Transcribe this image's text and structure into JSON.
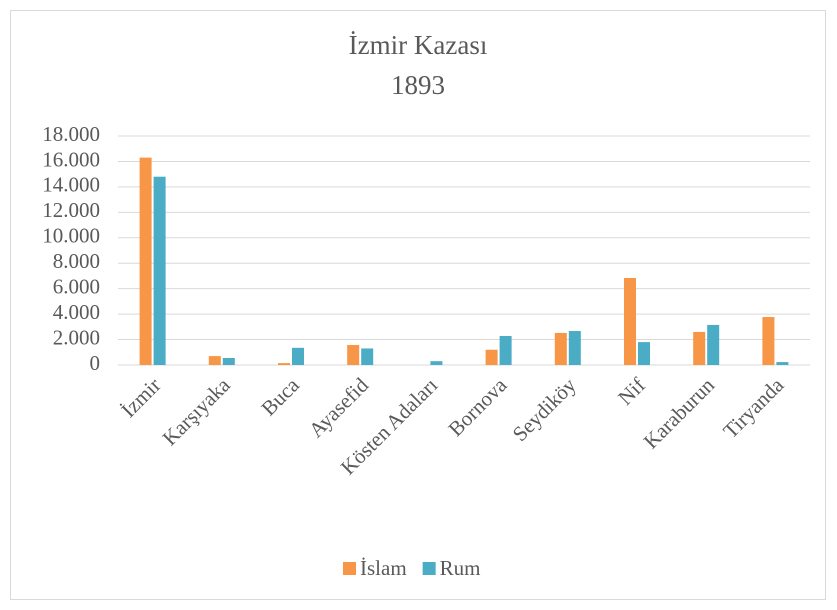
{
  "chart_data": {
    "type": "bar",
    "title": "İzmir Kazası",
    "subtitle": "1893",
    "categories": [
      "İzmir",
      "Karşıyaka",
      "Buca",
      "Ayasefid",
      "Kösten Adaları",
      "Bornova",
      "Seydiköy",
      "Nif",
      "Karaburun",
      "Tiryanda"
    ],
    "series": [
      {
        "name": "İslam",
        "color": "#f79646",
        "values": [
          16300,
          700,
          150,
          1570,
          0,
          1200,
          2520,
          6840,
          2600,
          3770
        ]
      },
      {
        "name": "Rum",
        "color": "#4bacc6",
        "values": [
          14800,
          550,
          1350,
          1300,
          300,
          2280,
          2670,
          1800,
          3150,
          230
        ]
      }
    ],
    "ylim": [
      0,
      18000
    ],
    "yticks": [
      0,
      {
        "value": 2000,
        "label": "2.000"
      },
      {
        "value": 4000,
        "label": "4.000"
      },
      {
        "value": 6000,
        "label": "6.000"
      },
      {
        "value": 8000,
        "label": "8.000"
      },
      {
        "value": 10000,
        "label": "10.000"
      },
      {
        "value": 12000,
        "label": "12.000"
      },
      {
        "value": 14000,
        "label": "14.000"
      },
      {
        "value": 16000,
        "label": "16.000"
      },
      {
        "value": 18000,
        "label": "18.000"
      }
    ],
    "grid": true,
    "legend": "bottom"
  }
}
